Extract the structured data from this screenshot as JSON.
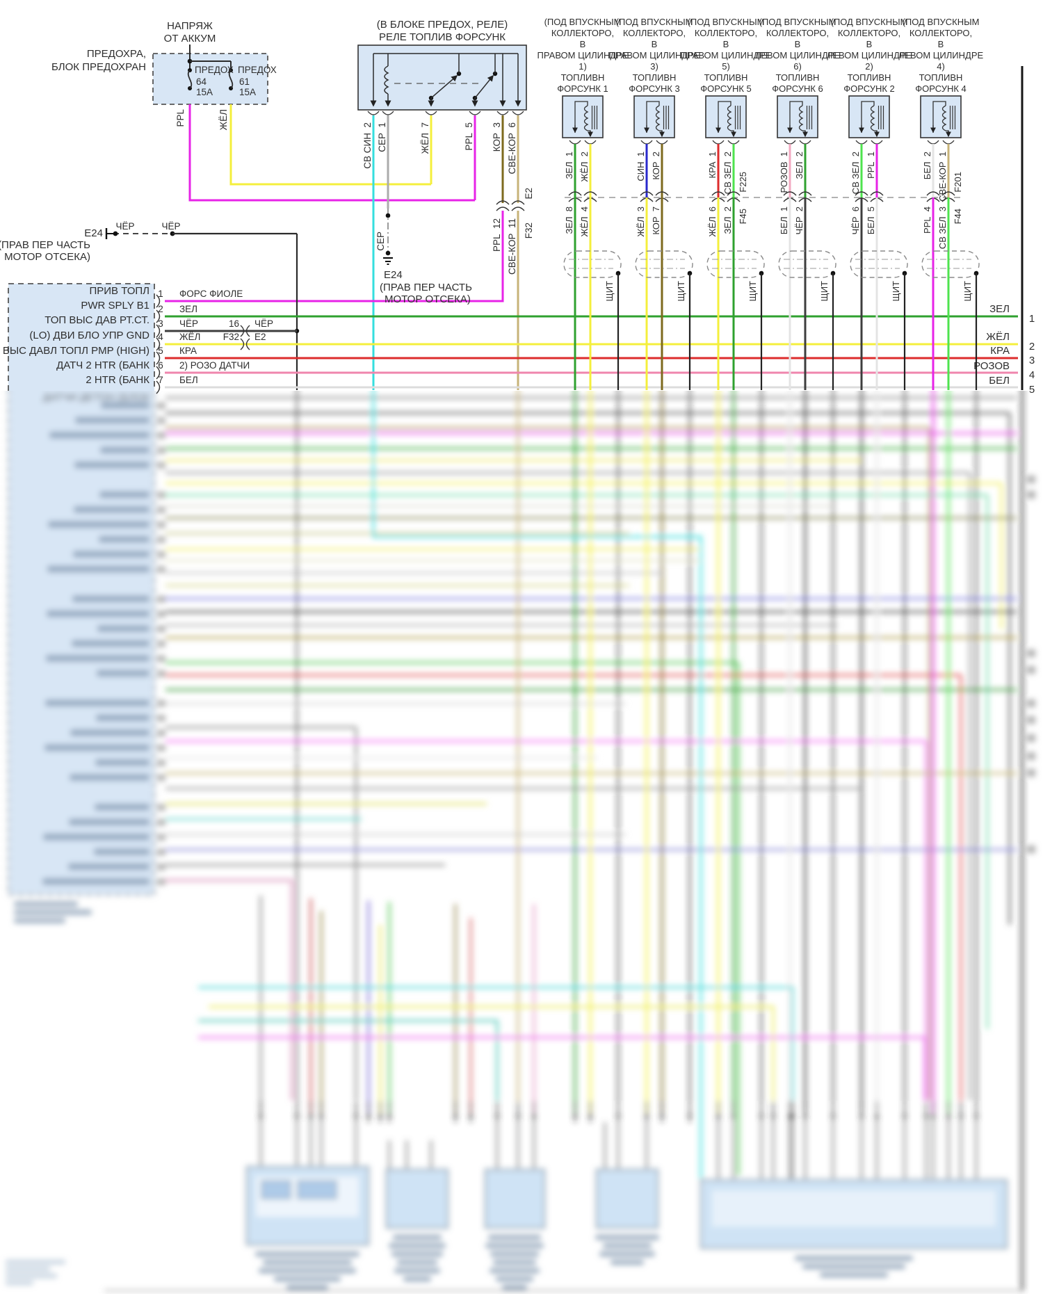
{
  "fuse_block": {
    "supply_line1": "НАПРЯЖ",
    "supply_line2": "ОТ АККУМ",
    "name_line1": "ПРЕДОХРА,",
    "name_line2": "БЛОК ПРЕДОХРАН",
    "fuse_left_name": "ПРЕДОХ",
    "fuse_left_num": "64",
    "fuse_left_amps": "15A",
    "fuse_right_name": "ПРЕДОХ",
    "fuse_right_num": "61",
    "fuse_right_amps": "15A",
    "wire_left": "PPL",
    "wire_right": "ЖЁЛ"
  },
  "relay": {
    "title_line1": "(В БЛОКЕ ПРЕДОХ, РЕЛЕ)",
    "title_line2": "РЕЛЕ ТОПЛИВ ФОРСУНК",
    "pin_1": "СВ СИН  2",
    "pin_2": "СЕР  1",
    "pin_3": "ЖЁЛ  7",
    "pin_4": "PPL  5",
    "pin_5": "КОР  3",
    "pin_6": "СВЕ-КОР  6",
    "inline_left": "PPL  12",
    "inline_right": "СВЕ-КОР  11",
    "inline_conn_top": "E2",
    "inline_conn_bottom": "F32"
  },
  "ground_mid": {
    "wire": "СЕР",
    "code": "E24",
    "desc_line1": "(ПРАВ ПЕР ЧАСТЬ",
    "desc_line2": "МОТОР ОТСЕКА)"
  },
  "ground_left": {
    "code": "E24",
    "wire_label_a": "ЧЁР",
    "wire_label_b": "ЧЁР",
    "desc_line1": "(ПРАВ ПЕР ЧАСТЬ",
    "desc_line2": "МОТОР ОТСЕКА)"
  },
  "injectors": [
    {
      "h1": "(ПОД ВПУСКНЫМ",
      "h2": "КОЛЛЕКТОРО,",
      "h3": "В",
      "h4": "ПРАВОМ ЦИЛИНДРЕ",
      "h5": "1)",
      "name1": "ТОПЛИВН",
      "name2": "ФОРСУНК 1",
      "top_left": "ЗЕЛ  1",
      "top_right": "ЖЁЛ  2",
      "bot_left": "ЗЕЛ  8",
      "bot_right": "ЖЁЛ  4",
      "shield": "ЩИТ"
    },
    {
      "h1": "(ПОД ВПУСКНЫМ",
      "h2": "КОЛЛЕКТОРО,",
      "h3": "В",
      "h4": "ПРАВОМ ЦИЛИНДРЕ",
      "h5": "3)",
      "name1": "ТОПЛИВН",
      "name2": "ФОРСУНК 3",
      "top_left": "СИН  1",
      "top_right": "КОР  2",
      "bot_left": "ЖЁЛ  3",
      "bot_right": "КОР  7",
      "shield": "ЩИТ"
    },
    {
      "h1": "(ПОД ВПУСКНЫМ",
      "h2": "КОЛЛЕКТОРО,",
      "h3": "В",
      "h4": "ПРАВОМ ЦИЛИНДРЕ",
      "h5": "5)",
      "name1": "ТОПЛИВН",
      "name2": "ФОРСУНК 5",
      "top_left": "КРА  1",
      "top_right": "СВ ЗЕЛ  2",
      "top_conn": "F225",
      "bot_left": "ЖЁЛ  6",
      "bot_right": "ЗЕЛ  2",
      "bot_conn": "F45",
      "shield": "ЩИТ"
    },
    {
      "h1": "(ПОД ВПУСКНЫМ",
      "h2": "КОЛЛЕКТОРО,",
      "h3": "В",
      "h4": "ЛЕВОМ ЦИЛИНДРЕ",
      "h5": "6)",
      "name1": "ТОПЛИВН",
      "name2": "ФОРСУНК 6",
      "top_left": "РОЗОВ  1",
      "top_right": "ЗЕЛ  2",
      "bot_left": "БЕЛ  1",
      "bot_right": "ЧЁР  2",
      "shield": "ЩИТ"
    },
    {
      "h1": "(ПОД ВПУСКНЫМ",
      "h2": "КОЛЛЕКТОРО,",
      "h3": "В",
      "h4": "ЛЕВОМ ЦИЛИНДРЕ",
      "h5": "2)",
      "name1": "ТОПЛИВН",
      "name2": "ФОРСУНК 2",
      "top_left": "СВ ЗЕЛ  2",
      "top_right": "PPL  1",
      "bot_left": "ЧЁР  6",
      "bot_right": "БЕЛ  5",
      "shield": "ЩИТ"
    },
    {
      "h1": "(ПОД ВПУСКНЫМ",
      "h2": "КОЛЛЕКТОРО,",
      "h3": "В",
      "h4": "ЛЕВОМ ЦИЛИНДРЕ",
      "h5": "4)",
      "name1": "ТОПЛИВН",
      "name2": "ФОРСУНК 4",
      "top_left": "БЕЛ  2",
      "top_right": "СВЕ-КОР  1",
      "top_conn": "F201",
      "bot_left": "PPL  4",
      "bot_right": "СВ ЗЕЛ  3",
      "bot_conn": "F44",
      "shield": "ЩИТ"
    }
  ],
  "pcm": {
    "label_1": "ПРИВ ТОПЛ",
    "label_2": "PWR SPLY B1",
    "label_3": "ТОП ВЫС ДАВ РТ.СТ.",
    "label_4": "(LO) ДВИ БЛО УПР GND",
    "label_5": "ВЫС ДАВЛ ТОПЛ PMP (HIGH)",
    "label_6": "ДАТЧ 2 HTR (БАНК",
    "label_7": "2 HTR (БАНК",
    "label_8": "ДАТЧИ ДЕТОН (БЛОК",
    "row_1_pin": "1",
    "row_1_label": "ФОРС ФИОЛЕ",
    "row_2_pin": "2",
    "row_2_label": "ЗЕЛ",
    "row_3_pin": "3",
    "row_3_label": "ЧЁР",
    "row_3_conn_pin": "16",
    "row_3_label2": "ЧЁР",
    "row_4_pin": "4",
    "row_4_label": "ЖЁЛ",
    "row_4_conn_left": "F32",
    "row_4_conn_right": "E2",
    "row_5_pin": "5",
    "row_5_label": "КРА",
    "row_6_pin": "6",
    "row_6_label": "2) РОЗО ДАТЧИ",
    "row_7_pin": "7",
    "row_7_label": "БЕЛ"
  },
  "right_edge": {
    "row_1_label": "ЗЕЛ",
    "row_1_num": "1",
    "row_2_label": "ЖЁЛ",
    "row_2_num": "2",
    "row_3_label": "КРА",
    "row_3_num": "3",
    "row_4_label": "РОЗОВ",
    "row_4_num": "4",
    "row_5_label": "БЕЛ",
    "row_5_num": "5"
  },
  "wire_colors": {
    "PPL": "#e723e7",
    "ZHEL": "#f4ef3c",
    "ZEL": "#2fa12f",
    "SV_ZEL": "#4ee34e",
    "SIN": "#2929cc",
    "SV_SIN": "#35dede",
    "KOR": "#7d6a1e",
    "SVE_KOR": "#c7b378",
    "KRA": "#dd2c2c",
    "ROZOV": "#f2a9c0",
    "BEL": "#e4e4e4",
    "CHER": "#3d3d3d",
    "SER": "#ababab"
  }
}
